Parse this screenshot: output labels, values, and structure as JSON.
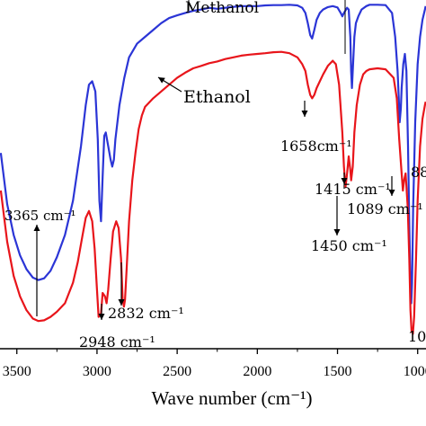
{
  "chart_data": {
    "type": "line",
    "title": "",
    "xlabel": "Wave number (cm⁻¹)",
    "ylabel": "",
    "xlim": [
      3600,
      950
    ],
    "x_reversed": true,
    "ylim": [
      0,
      100
    ],
    "grid": false,
    "x_ticks": [
      3500,
      3000,
      2500,
      2000,
      1500,
      1000
    ],
    "x_tick_labels": [
      "3500",
      "3000",
      "2500",
      "2000",
      "1500",
      "1000"
    ],
    "series": [
      {
        "name": "Methanol",
        "color": "#2b35d6",
        "points": [
          [
            3600,
            56
          ],
          [
            3560,
            41
          ],
          [
            3520,
            32
          ],
          [
            3480,
            26
          ],
          [
            3440,
            22
          ],
          [
            3400,
            19.5
          ],
          [
            3365,
            18.8
          ],
          [
            3330,
            19.3
          ],
          [
            3290,
            21.5
          ],
          [
            3250,
            25.5
          ],
          [
            3200,
            32
          ],
          [
            3150,
            42
          ],
          [
            3100,
            58
          ],
          [
            3070,
            70
          ],
          [
            3050,
            76
          ],
          [
            3030,
            77
          ],
          [
            3010,
            74
          ],
          [
            2995,
            60
          ],
          [
            2985,
            42
          ],
          [
            2975,
            36
          ],
          [
            2965,
            49
          ],
          [
            2955,
            61
          ],
          [
            2945,
            62
          ],
          [
            2930,
            58
          ],
          [
            2915,
            54
          ],
          [
            2905,
            52
          ],
          [
            2895,
            54
          ],
          [
            2885,
            60
          ],
          [
            2860,
            70
          ],
          [
            2830,
            78
          ],
          [
            2800,
            84
          ],
          [
            2750,
            88
          ],
          [
            2700,
            90
          ],
          [
            2650,
            92
          ],
          [
            2600,
            94
          ],
          [
            2550,
            95.5
          ],
          [
            2500,
            96.3
          ],
          [
            2450,
            97
          ],
          [
            2400,
            97.6
          ],
          [
            2350,
            98
          ],
          [
            2300,
            98.5
          ],
          [
            2250,
            98.2
          ],
          [
            2200,
            98.5
          ],
          [
            2150,
            98.8
          ],
          [
            2100,
            99
          ],
          [
            2050,
            99
          ],
          [
            2000,
            99
          ],
          [
            1950,
            99.2
          ],
          [
            1900,
            99.3
          ],
          [
            1850,
            99.3
          ],
          [
            1800,
            99.4
          ],
          [
            1750,
            99.2
          ],
          [
            1720,
            98.5
          ],
          [
            1700,
            97
          ],
          [
            1685,
            94
          ],
          [
            1670,
            90.5
          ],
          [
            1658,
            89.5
          ],
          [
            1645,
            92
          ],
          [
            1630,
            95
          ],
          [
            1610,
            97
          ],
          [
            1590,
            98
          ],
          [
            1560,
            98.7
          ],
          [
            1530,
            99
          ],
          [
            1500,
            98.6
          ],
          [
            1480,
            97
          ],
          [
            1470,
            96
          ],
          [
            1460,
            97
          ],
          [
            1440,
            98.5
          ],
          [
            1430,
            98
          ],
          [
            1420,
            90
          ],
          [
            1415,
            80
          ],
          [
            1410,
            75
          ],
          [
            1405,
            80
          ],
          [
            1395,
            90
          ],
          [
            1385,
            94
          ],
          [
            1370,
            96
          ],
          [
            1350,
            98
          ],
          [
            1320,
            99
          ],
          [
            1300,
            99.4
          ],
          [
            1250,
            99.4
          ],
          [
            1200,
            99.3
          ],
          [
            1160,
            97
          ],
          [
            1140,
            90
          ],
          [
            1125,
            80
          ],
          [
            1118,
            72
          ],
          [
            1112,
            65
          ],
          [
            1105,
            69
          ],
          [
            1100,
            75
          ],
          [
            1090,
            82
          ],
          [
            1080,
            85
          ],
          [
            1070,
            80
          ],
          [
            1060,
            58
          ],
          [
            1052,
            35
          ],
          [
            1045,
            18
          ],
          [
            1040,
            12
          ],
          [
            1035,
            18
          ],
          [
            1028,
            40
          ],
          [
            1015,
            65
          ],
          [
            1000,
            82
          ],
          [
            985,
            90
          ],
          [
            970,
            95
          ],
          [
            955,
            98
          ],
          [
            950,
            99
          ]
        ]
      },
      {
        "name": "Ethanol",
        "color": "#e8151b",
        "points": [
          [
            3600,
            45
          ],
          [
            3560,
            30
          ],
          [
            3520,
            20
          ],
          [
            3480,
            14
          ],
          [
            3440,
            10
          ],
          [
            3400,
            7.5
          ],
          [
            3365,
            6.8
          ],
          [
            3330,
            7
          ],
          [
            3290,
            8
          ],
          [
            3250,
            9.5
          ],
          [
            3200,
            12
          ],
          [
            3150,
            18
          ],
          [
            3120,
            24
          ],
          [
            3090,
            32
          ],
          [
            3070,
            37
          ],
          [
            3050,
            39
          ],
          [
            3030,
            36
          ],
          [
            3015,
            28
          ],
          [
            3000,
            16
          ],
          [
            2990,
            8
          ],
          [
            2975,
            9
          ],
          [
            2965,
            15
          ],
          [
            2950,
            14
          ],
          [
            2940,
            12
          ],
          [
            2930,
            16
          ],
          [
            2915,
            25
          ],
          [
            2900,
            33
          ],
          [
            2880,
            36
          ],
          [
            2865,
            34
          ],
          [
            2850,
            25
          ],
          [
            2840,
            13
          ],
          [
            2832,
            11
          ],
          [
            2825,
            13
          ],
          [
            2815,
            22
          ],
          [
            2800,
            36
          ],
          [
            2780,
            48
          ],
          [
            2760,
            56
          ],
          [
            2740,
            63
          ],
          [
            2720,
            67
          ],
          [
            2700,
            69.5
          ],
          [
            2650,
            72
          ],
          [
            2600,
            74
          ],
          [
            2550,
            76
          ],
          [
            2500,
            78
          ],
          [
            2450,
            79.5
          ],
          [
            2400,
            80.8
          ],
          [
            2350,
            81.5
          ],
          [
            2300,
            82.3
          ],
          [
            2250,
            82.8
          ],
          [
            2200,
            83.5
          ],
          [
            2150,
            84
          ],
          [
            2100,
            84.5
          ],
          [
            2050,
            84.8
          ],
          [
            2000,
            85
          ],
          [
            1950,
            85.2
          ],
          [
            1900,
            85.5
          ],
          [
            1850,
            85.6
          ],
          [
            1800,
            85.2
          ],
          [
            1750,
            84
          ],
          [
            1720,
            82
          ],
          [
            1700,
            80
          ],
          [
            1685,
            76
          ],
          [
            1670,
            73
          ],
          [
            1658,
            72
          ],
          [
            1645,
            73
          ],
          [
            1630,
            75
          ],
          [
            1610,
            77
          ],
          [
            1590,
            79
          ],
          [
            1560,
            81.5
          ],
          [
            1530,
            83
          ],
          [
            1510,
            82
          ],
          [
            1490,
            76
          ],
          [
            1470,
            62
          ],
          [
            1460,
            52
          ],
          [
            1450,
            46
          ],
          [
            1440,
            50
          ],
          [
            1430,
            55
          ],
          [
            1420,
            51
          ],
          [
            1415,
            48
          ],
          [
            1405,
            52
          ],
          [
            1395,
            62
          ],
          [
            1380,
            70
          ],
          [
            1360,
            76
          ],
          [
            1340,
            79
          ],
          [
            1320,
            80
          ],
          [
            1300,
            80.5
          ],
          [
            1250,
            80.8
          ],
          [
            1200,
            80.5
          ],
          [
            1150,
            78
          ],
          [
            1130,
            72
          ],
          [
            1115,
            60
          ],
          [
            1100,
            50
          ],
          [
            1092,
            45
          ],
          [
            1085,
            48
          ],
          [
            1075,
            50
          ],
          [
            1062,
            40
          ],
          [
            1052,
            25
          ],
          [
            1045,
            10
          ],
          [
            1038,
            4
          ],
          [
            1030,
            3
          ],
          [
            1022,
            8
          ],
          [
            1010,
            25
          ],
          [
            1000,
            42
          ],
          [
            985,
            58
          ],
          [
            970,
            66
          ],
          [
            955,
            70
          ],
          [
            950,
            71
          ]
        ]
      }
    ],
    "annotations": [
      {
        "text": "Methanol",
        "arrow": false
      },
      {
        "text": "Ethanol",
        "arrow": true,
        "arrow_to": [
          2610,
          74
        ]
      },
      {
        "text": "3365 cm⁻¹",
        "x": 3365,
        "arrow": "up"
      },
      {
        "text": "2948 cm⁻¹",
        "x": 2948,
        "arrow": "down"
      },
      {
        "text": "2832 cm⁻¹",
        "x": 2832,
        "arrow": "down"
      },
      {
        "text": "1658cm⁻¹",
        "x": 1658,
        "arrow": "down"
      },
      {
        "text": "1450 cm⁻¹",
        "x": 1450,
        "arrow": "down"
      },
      {
        "text": "1415 cm⁻¹",
        "x": 1415,
        "arrow": "down"
      },
      {
        "text": "1089 cm⁻¹",
        "x": 1089,
        "arrow": "down"
      },
      {
        "text": "88",
        "x": 880,
        "arrow": false
      },
      {
        "text": "10",
        "x": 1030,
        "arrow": false
      }
    ]
  }
}
